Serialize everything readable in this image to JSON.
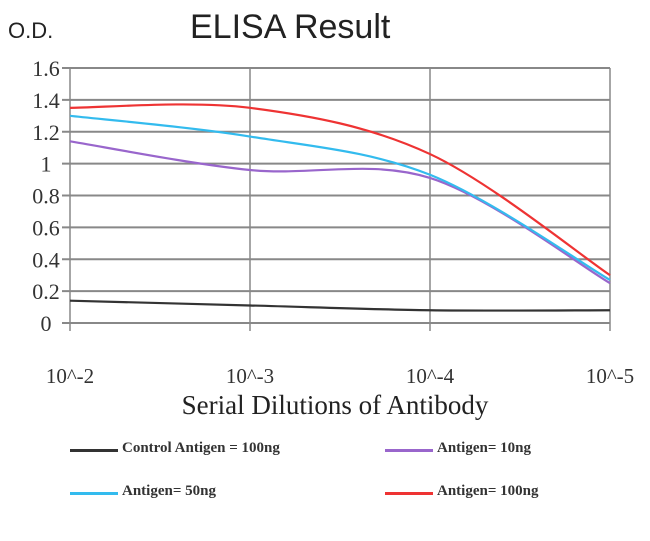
{
  "chart_data": {
    "type": "line",
    "title": "ELISA Result",
    "ylabel": "O.D.",
    "xlabel": "Serial Dilutions of Antibody",
    "categories": [
      "10^-2",
      "10^-3",
      "10^-4",
      "10^-5"
    ],
    "ylim": [
      0,
      1.6
    ],
    "yticks": [
      "0",
      "0.2",
      "0.4",
      "0.6",
      "0.8",
      "1",
      "1.2",
      "1.4",
      "1.6"
    ],
    "grid": true,
    "legend_position": "bottom",
    "series": [
      {
        "name": "Control Antigen = 100ng",
        "color": "#333333",
        "values": [
          0.14,
          0.11,
          0.08,
          0.08
        ]
      },
      {
        "name": "Antigen= 10ng",
        "color": "#9966cc",
        "values": [
          1.14,
          0.96,
          0.91,
          0.25
        ]
      },
      {
        "name": "Antigen= 50ng",
        "color": "#33bbee",
        "values": [
          1.3,
          1.17,
          0.93,
          0.27
        ]
      },
      {
        "name": "Antigen= 100ng",
        "color": "#ee3333",
        "values": [
          1.35,
          1.35,
          1.06,
          0.3
        ]
      }
    ]
  }
}
